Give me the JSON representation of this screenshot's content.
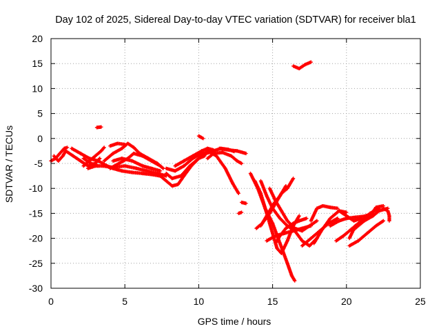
{
  "chart_data": {
    "type": "scatter",
    "title": "Day 102 of 2025, Sidereal Day-to-day VTEC variation (SDTVAR) for receiver bla1",
    "xlabel": "GPS time / hours",
    "ylabel": "SDTVAR / TECUs",
    "xlim": [
      0,
      25
    ],
    "ylim": [
      -30,
      20
    ],
    "xticks": [
      0,
      5,
      10,
      15,
      20,
      25
    ],
    "yticks": [
      -30,
      -25,
      -20,
      -15,
      -10,
      -5,
      0,
      5,
      10,
      15,
      20
    ],
    "grid": true,
    "marker": "+",
    "color": "#ff0000",
    "series": [
      {
        "name": "track-1",
        "points": [
          [
            0.0,
            -4.5
          ],
          [
            0.3,
            -4.0
          ],
          [
            0.6,
            -3.0
          ],
          [
            0.9,
            -2.0
          ],
          [
            1.1,
            -1.8
          ]
        ]
      },
      {
        "name": "track-2",
        "points": [
          [
            0.2,
            -3.5
          ],
          [
            0.5,
            -4.5
          ],
          [
            0.8,
            -3.5
          ],
          [
            1.0,
            -2.5
          ]
        ]
      },
      {
        "name": "track-3",
        "points": [
          [
            1.0,
            -2.5
          ],
          [
            1.5,
            -3.5
          ],
          [
            2.0,
            -4.5
          ],
          [
            2.5,
            -5.5
          ],
          [
            3.0,
            -5.0
          ],
          [
            3.3,
            -4.0
          ]
        ]
      },
      {
        "name": "track-4",
        "points": [
          [
            1.4,
            -2.0
          ],
          [
            2.0,
            -3.0
          ],
          [
            2.6,
            -4.0
          ],
          [
            3.2,
            -4.5
          ],
          [
            3.8,
            -5.5
          ],
          [
            4.2,
            -6.0
          ],
          [
            4.8,
            -6.5
          ],
          [
            5.5,
            -6.8
          ],
          [
            6.2,
            -7.0
          ],
          [
            6.8,
            -7.2
          ],
          [
            7.4,
            -7.5
          ]
        ]
      },
      {
        "name": "track-5",
        "points": [
          [
            2.2,
            -5.5
          ],
          [
            2.6,
            -4.5
          ],
          [
            3.0,
            -3.5
          ],
          [
            3.4,
            -2.5
          ],
          [
            3.6,
            -1.8
          ]
        ]
      },
      {
        "name": "track-6",
        "points": [
          [
            2.5,
            -6.0
          ],
          [
            3.0,
            -5.5
          ],
          [
            3.5,
            -5.5
          ],
          [
            4.2,
            -5.8
          ],
          [
            5.0,
            -5.5
          ],
          [
            5.8,
            -6.0
          ],
          [
            6.5,
            -6.5
          ],
          [
            7.2,
            -7.0
          ],
          [
            7.8,
            -7.5
          ]
        ]
      },
      {
        "name": "track-7",
        "points": [
          [
            2.2,
            -4.0
          ],
          [
            2.7,
            -5.0
          ],
          [
            3.2,
            -5.5
          ]
        ]
      },
      {
        "name": "track-8",
        "points": [
          [
            3.6,
            -4.5
          ],
          [
            4.2,
            -3.0
          ],
          [
            4.8,
            -2.0
          ],
          [
            5.2,
            -1.0
          ],
          [
            5.6,
            -1.8
          ],
          [
            6.0,
            -3.0
          ],
          [
            6.6,
            -4.0
          ],
          [
            7.2,
            -5.0
          ],
          [
            7.6,
            -6.0
          ]
        ]
      },
      {
        "name": "track-9",
        "points": [
          [
            4.0,
            -1.5
          ],
          [
            4.5,
            -1.0
          ],
          [
            5.0,
            -1.2
          ]
        ]
      },
      {
        "name": "track-10",
        "points": [
          [
            4.0,
            -6.0
          ],
          [
            4.6,
            -5.0
          ],
          [
            5.2,
            -4.0
          ],
          [
            5.6,
            -3.0
          ],
          [
            6.2,
            -3.5
          ],
          [
            6.8,
            -4.5
          ],
          [
            7.4,
            -5.5
          ]
        ]
      },
      {
        "name": "track-11",
        "points": [
          [
            4.2,
            -4.5
          ],
          [
            4.8,
            -4.0
          ],
          [
            5.5,
            -4.5
          ],
          [
            6.2,
            -5.5
          ],
          [
            6.8,
            -6.0
          ],
          [
            7.4,
            -6.5
          ]
        ]
      },
      {
        "name": "track-12",
        "points": [
          [
            3.1,
            2.2
          ],
          [
            3.4,
            2.3
          ]
        ]
      },
      {
        "name": "track-13",
        "points": [
          [
            7.4,
            -7.5
          ],
          [
            7.8,
            -8.5
          ],
          [
            8.2,
            -9.5
          ],
          [
            8.6,
            -9.2
          ],
          [
            9.0,
            -7.5
          ],
          [
            9.5,
            -5.5
          ],
          [
            10.0,
            -4.0
          ],
          [
            10.5,
            -3.0
          ],
          [
            11.0,
            -2.5
          ],
          [
            11.5,
            -2.0
          ],
          [
            12.0,
            -2.2
          ],
          [
            12.4,
            -2.6
          ]
        ]
      },
      {
        "name": "track-14",
        "points": [
          [
            7.8,
            -7.0
          ],
          [
            8.2,
            -8.0
          ],
          [
            8.8,
            -7.5
          ],
          [
            9.4,
            -5.5
          ],
          [
            10.0,
            -4.0
          ],
          [
            10.4,
            -3.5
          ]
        ]
      },
      {
        "name": "track-15",
        "points": [
          [
            7.8,
            -6.0
          ],
          [
            8.4,
            -6.5
          ],
          [
            9.0,
            -5.5
          ],
          [
            9.6,
            -4.0
          ],
          [
            10.2,
            -3.0
          ],
          [
            10.8,
            -2.5
          ]
        ]
      },
      {
        "name": "track-16",
        "points": [
          [
            8.4,
            -5.5
          ],
          [
            9.0,
            -4.5
          ],
          [
            9.6,
            -3.5
          ],
          [
            10.2,
            -2.5
          ],
          [
            10.6,
            -2.0
          ],
          [
            11.0,
            -2.3
          ]
        ]
      },
      {
        "name": "track-17",
        "points": [
          [
            10.0,
            0.5
          ],
          [
            10.3,
            0.0
          ]
        ]
      },
      {
        "name": "track-18",
        "points": [
          [
            10.6,
            -4.0
          ],
          [
            11.0,
            -3.0
          ],
          [
            11.6,
            -2.8
          ],
          [
            12.2,
            -3.5
          ],
          [
            12.6,
            -4.5
          ],
          [
            12.9,
            -5.0
          ]
        ]
      },
      {
        "name": "track-19",
        "points": [
          [
            10.6,
            -2.5
          ],
          [
            11.2,
            -3.5
          ],
          [
            11.8,
            -6.0
          ],
          [
            12.3,
            -9.0
          ],
          [
            12.7,
            -11.0
          ]
        ]
      },
      {
        "name": "track-20",
        "points": [
          [
            11.4,
            -2.0
          ],
          [
            12.0,
            -2.3
          ],
          [
            12.6,
            -2.5
          ],
          [
            13.2,
            -3.0
          ]
        ]
      },
      {
        "name": "track-21",
        "points": [
          [
            12.9,
            -12.8
          ],
          [
            13.2,
            -13.0
          ]
        ]
      },
      {
        "name": "track-22",
        "points": [
          [
            12.7,
            -15.0
          ],
          [
            12.9,
            -14.8
          ]
        ]
      },
      {
        "name": "track-23",
        "points": [
          [
            13.5,
            -7.0
          ],
          [
            14.0,
            -10.0
          ],
          [
            14.5,
            -14.0
          ],
          [
            15.0,
            -17.0
          ],
          [
            15.5,
            -21.0
          ],
          [
            16.0,
            -25.0
          ],
          [
            16.3,
            -27.5
          ],
          [
            16.5,
            -28.5
          ]
        ]
      },
      {
        "name": "track-24",
        "points": [
          [
            13.8,
            -8.5
          ],
          [
            14.2,
            -11.0
          ],
          [
            14.6,
            -15.0
          ],
          [
            15.0,
            -19.0
          ],
          [
            15.3,
            -22.0
          ],
          [
            15.6,
            -23.0
          ],
          [
            16.0,
            -20.5
          ],
          [
            16.4,
            -17.5
          ],
          [
            16.8,
            -15.5
          ]
        ]
      },
      {
        "name": "track-25",
        "points": [
          [
            14.2,
            -8.5
          ],
          [
            14.6,
            -11.5
          ],
          [
            15.0,
            -14.0
          ],
          [
            15.5,
            -16.0
          ],
          [
            16.0,
            -17.5
          ],
          [
            16.5,
            -18.5
          ],
          [
            17.0,
            -20.5
          ],
          [
            17.5,
            -21.5
          ],
          [
            18.0,
            -20.0
          ]
        ]
      },
      {
        "name": "track-26",
        "points": [
          [
            14.8,
            -10.0
          ],
          [
            15.2,
            -12.5
          ],
          [
            15.6,
            -14.5
          ],
          [
            16.0,
            -16.5
          ],
          [
            16.5,
            -18.0
          ],
          [
            17.0,
            -18.5
          ],
          [
            17.5,
            -17.5
          ],
          [
            18.0,
            -16.5
          ]
        ]
      },
      {
        "name": "track-27",
        "points": [
          [
            13.9,
            -18.0
          ],
          [
            14.3,
            -17.0
          ],
          [
            14.8,
            -15.0
          ],
          [
            15.2,
            -13.0
          ],
          [
            15.6,
            -11.0
          ],
          [
            16.0,
            -10.0
          ],
          [
            16.4,
            -8.0
          ]
        ]
      },
      {
        "name": "track-28",
        "points": [
          [
            14.2,
            -17.5
          ],
          [
            14.6,
            -15.5
          ],
          [
            15.1,
            -13.0
          ],
          [
            15.5,
            -11.5
          ],
          [
            15.9,
            -9.5
          ]
        ]
      },
      {
        "name": "track-29",
        "points": [
          [
            15.2,
            -21.0
          ],
          [
            15.5,
            -19.5
          ],
          [
            15.9,
            -18.0
          ],
          [
            16.4,
            -17.0
          ],
          [
            16.8,
            -16.5
          ],
          [
            17.3,
            -16.0
          ]
        ]
      },
      {
        "name": "track-30",
        "points": [
          [
            14.6,
            -20.5
          ],
          [
            15.2,
            -19.5
          ],
          [
            15.8,
            -19.0
          ],
          [
            16.4,
            -18.5
          ],
          [
            17.0,
            -18.0
          ],
          [
            17.6,
            -17.5
          ]
        ]
      },
      {
        "name": "track-31",
        "points": [
          [
            17.0,
            -21.5
          ],
          [
            17.6,
            -20.0
          ],
          [
            18.2,
            -18.5
          ],
          [
            18.8,
            -17.0
          ],
          [
            19.4,
            -16.0
          ]
        ]
      },
      {
        "name": "track-32",
        "points": [
          [
            17.8,
            -21.0
          ],
          [
            18.3,
            -18.5
          ],
          [
            18.9,
            -16.0
          ],
          [
            19.5,
            -14.5
          ],
          [
            20.0,
            -14.8
          ]
        ]
      },
      {
        "name": "track-33",
        "points": [
          [
            17.6,
            -16.5
          ],
          [
            18.0,
            -14.0
          ],
          [
            18.4,
            -13.5
          ],
          [
            18.9,
            -13.8
          ],
          [
            19.4,
            -14.0
          ]
        ]
      },
      {
        "name": "track-34",
        "points": [
          [
            19.5,
            -14.5
          ],
          [
            20.0,
            -15.5
          ],
          [
            20.5,
            -16.5
          ],
          [
            21.0,
            -16.0
          ]
        ]
      },
      {
        "name": "track-35",
        "points": [
          [
            18.9,
            -17.5
          ],
          [
            19.5,
            -16.5
          ],
          [
            20.0,
            -16.0
          ],
          [
            20.6,
            -15.8
          ],
          [
            21.2,
            -15.6
          ],
          [
            21.8,
            -15.0
          ]
        ]
      },
      {
        "name": "track-36",
        "points": [
          [
            19.3,
            -20.5
          ],
          [
            19.8,
            -19.5
          ],
          [
            20.4,
            -18.0
          ],
          [
            21.0,
            -16.5
          ],
          [
            21.6,
            -15.0
          ],
          [
            22.2,
            -14.0
          ]
        ]
      },
      {
        "name": "track-37",
        "points": [
          [
            20.2,
            -21.5
          ],
          [
            20.8,
            -20.5
          ],
          [
            21.4,
            -19.0
          ],
          [
            22.0,
            -17.5
          ],
          [
            22.5,
            -16.5
          ]
        ]
      },
      {
        "name": "track-38",
        "points": [
          [
            20.2,
            -20.0
          ],
          [
            20.6,
            -17.5
          ],
          [
            21.2,
            -16.5
          ],
          [
            21.8,
            -15.5
          ],
          [
            22.2,
            -14.5
          ],
          [
            22.8,
            -14.0
          ]
        ]
      },
      {
        "name": "track-39",
        "points": [
          [
            20.4,
            -18.5
          ],
          [
            21.0,
            -17.0
          ],
          [
            21.6,
            -15.5
          ],
          [
            22.0,
            -13.8
          ],
          [
            22.5,
            -13.5
          ]
        ]
      },
      {
        "name": "track-40",
        "points": [
          [
            22.5,
            -14.0
          ],
          [
            22.8,
            -14.5
          ],
          [
            22.9,
            -15.5
          ],
          [
            22.9,
            -16.5
          ]
        ]
      },
      {
        "name": "track-41",
        "points": [
          [
            16.4,
            14.5
          ],
          [
            16.8,
            14.0
          ],
          [
            17.2,
            14.8
          ],
          [
            17.6,
            15.3
          ]
        ]
      }
    ]
  }
}
